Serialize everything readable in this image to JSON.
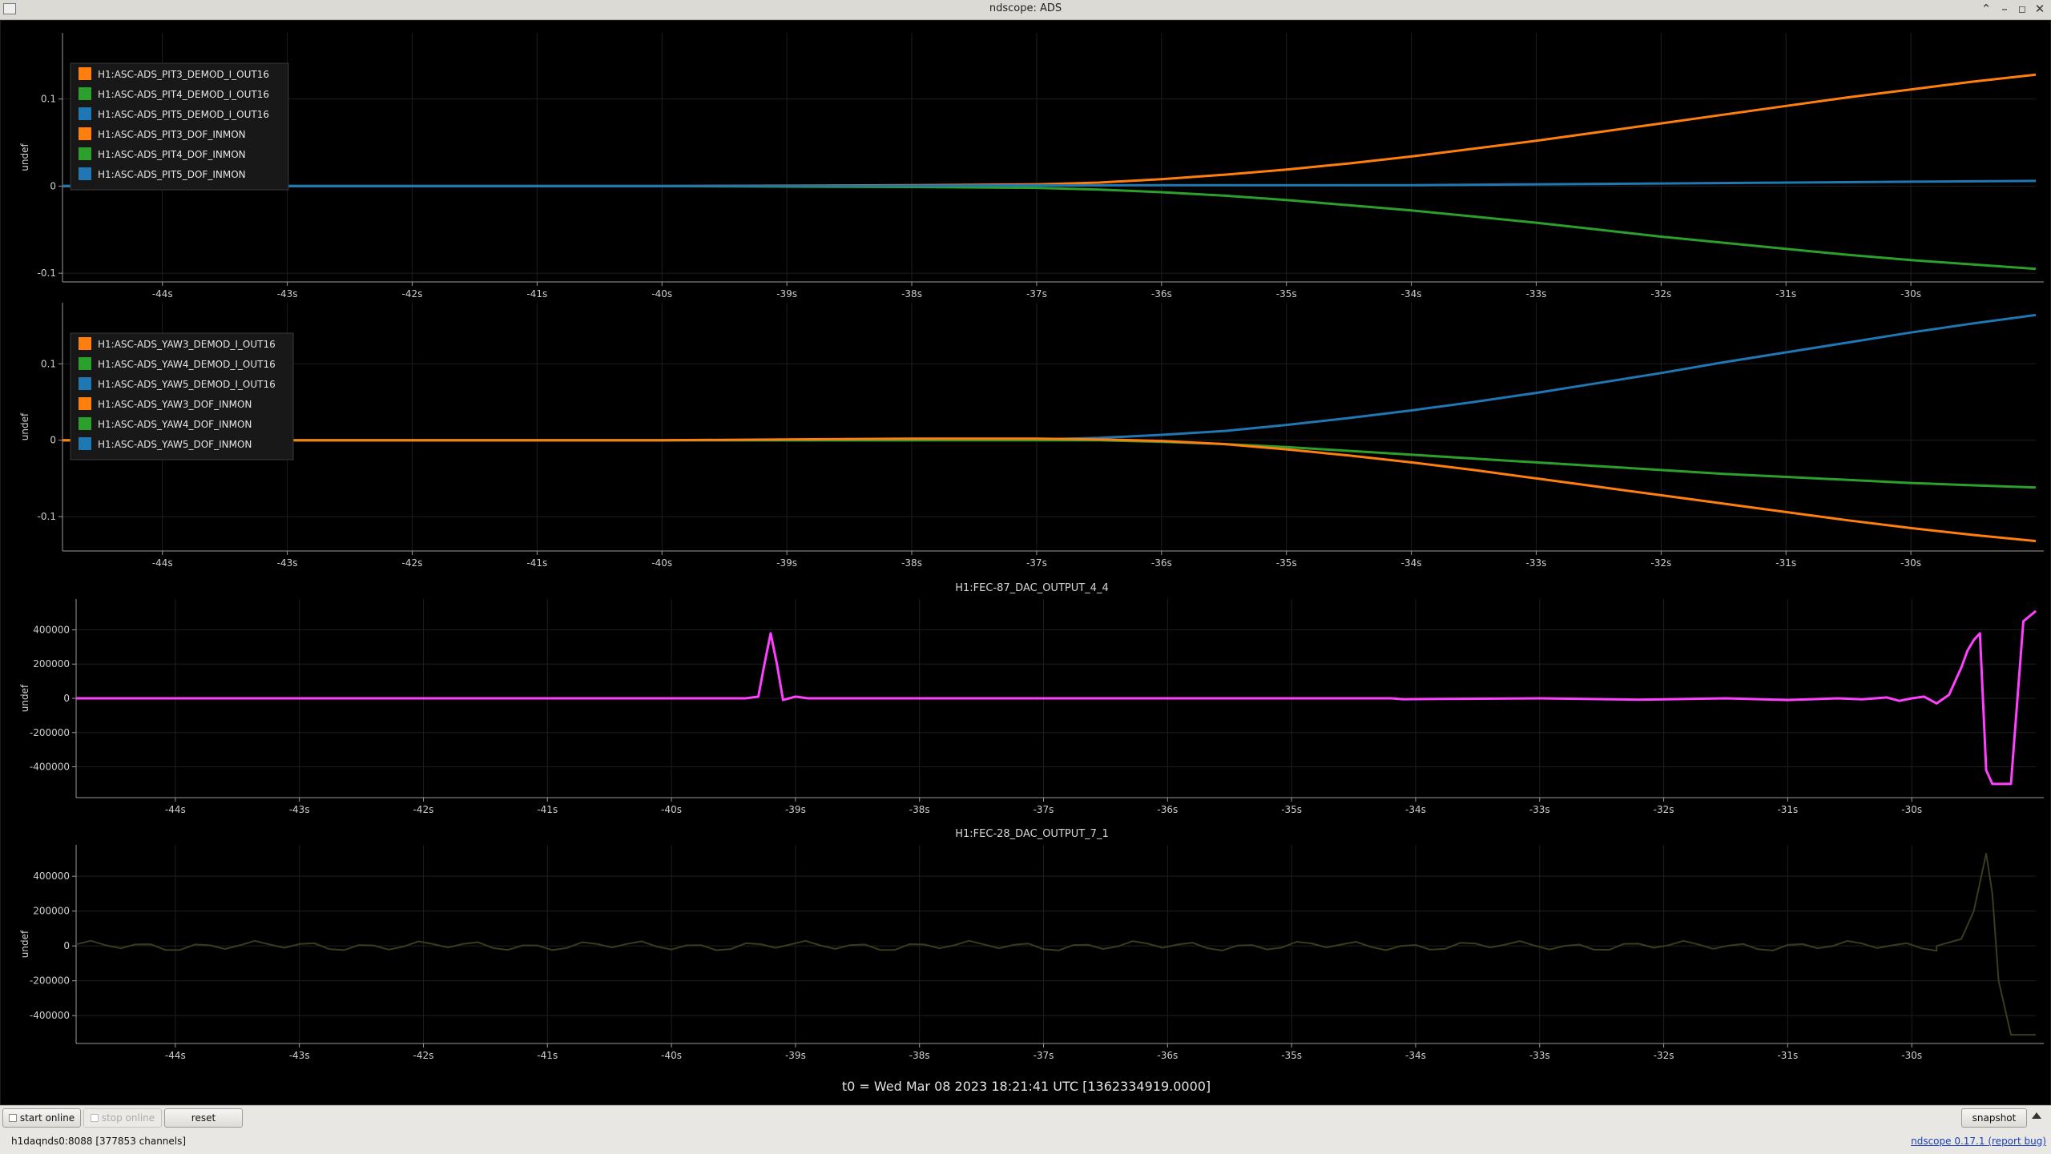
{
  "window": {
    "title": "ndscope: ADS"
  },
  "plots": [
    {
      "id": "pit",
      "title": "",
      "ylabel": "undef",
      "yticks": [
        {
          "v": 0.1,
          "label": "0.1"
        },
        {
          "v": 0,
          "label": "0"
        },
        {
          "v": -0.1,
          "label": "-0.1"
        }
      ],
      "ylim": [
        -0.11,
        0.176
      ],
      "legend": [
        {
          "name": "H1:ASC-ADS_PIT3_DEMOD_I_OUT16",
          "color": "#ff7f0e"
        },
        {
          "name": "H1:ASC-ADS_PIT4_DEMOD_I_OUT16",
          "color": "#2ca02c"
        },
        {
          "name": "H1:ASC-ADS_PIT5_DEMOD_I_OUT16",
          "color": "#1f77b4"
        },
        {
          "name": "H1:ASC-ADS_PIT3_DOF_INMON",
          "color": "#ff7f0e"
        },
        {
          "name": "H1:ASC-ADS_PIT4_DOF_INMON",
          "color": "#2ca02c"
        },
        {
          "name": "H1:ASC-ADS_PIT5_DOF_INMON",
          "color": "#1f77b4"
        }
      ],
      "series": [
        {
          "color": "#ff7f0e",
          "x": [
            -44.8,
            -40,
            -38,
            -37,
            -36.5,
            -36,
            -35.5,
            -35,
            -34.5,
            -34,
            -33.5,
            -33,
            -32.5,
            -32,
            -31.5,
            -31,
            -30.5,
            -30,
            -29.5,
            -29.0
          ],
          "y": [
            0.0,
            0.0,
            0.001,
            0.002,
            0.004,
            0.008,
            0.013,
            0.019,
            0.026,
            0.034,
            0.043,
            0.052,
            0.062,
            0.072,
            0.082,
            0.092,
            0.102,
            0.111,
            0.12,
            0.128
          ]
        },
        {
          "color": "#2ca02c",
          "x": [
            -44.8,
            -40,
            -38,
            -37,
            -36.5,
            -36,
            -35.5,
            -35,
            -34.5,
            -34,
            -33.5,
            -33,
            -32.5,
            -32,
            -31.5,
            -31,
            -30.5,
            -30,
            -29.5,
            -29.0
          ],
          "y": [
            0.0,
            0.0,
            -0.001,
            -0.002,
            -0.004,
            -0.007,
            -0.011,
            -0.016,
            -0.022,
            -0.028,
            -0.035,
            -0.042,
            -0.05,
            -0.058,
            -0.065,
            -0.072,
            -0.079,
            -0.085,
            -0.09,
            -0.095
          ]
        },
        {
          "color": "#1f77b4",
          "x": [
            -44.8,
            -40,
            -36,
            -34,
            -32,
            -30,
            -29.0
          ],
          "y": [
            0.0,
            0.0,
            0.001,
            0.001,
            0.003,
            0.005,
            0.006
          ]
        }
      ]
    },
    {
      "id": "yaw",
      "title": "",
      "ylabel": "undef",
      "yticks": [
        {
          "v": 0.1,
          "label": "0.1"
        },
        {
          "v": 0,
          "label": "0"
        },
        {
          "v": -0.1,
          "label": "-0.1"
        }
      ],
      "ylim": [
        -0.145,
        0.18
      ],
      "legend": [
        {
          "name": "H1:ASC-ADS_YAW3_DEMOD_I_OUT16",
          "color": "#ff7f0e"
        },
        {
          "name": "H1:ASC-ADS_YAW4_DEMOD_I_OUT16",
          "color": "#2ca02c"
        },
        {
          "name": "H1:ASC-ADS_YAW5_DEMOD_I_OUT16",
          "color": "#1f77b4"
        },
        {
          "name": "H1:ASC-ADS_YAW3_DOF_INMON",
          "color": "#ff7f0e"
        },
        {
          "name": "H1:ASC-ADS_YAW4_DOF_INMON",
          "color": "#2ca02c"
        },
        {
          "name": "H1:ASC-ADS_YAW5_DOF_INMON",
          "color": "#1f77b4"
        }
      ],
      "series": [
        {
          "color": "#1f77b4",
          "x": [
            -44.8,
            -40,
            -38,
            -37,
            -36.5,
            -36,
            -35.5,
            -35,
            -34.5,
            -34,
            -33.5,
            -33,
            -32.5,
            -32,
            -31.5,
            -31,
            -30.5,
            -30,
            -29.5,
            -29.0
          ],
          "y": [
            0.0,
            0.0,
            0.0,
            0.001,
            0.003,
            0.007,
            0.012,
            0.02,
            0.029,
            0.039,
            0.05,
            0.062,
            0.075,
            0.088,
            0.102,
            0.115,
            0.128,
            0.141,
            0.153,
            0.164
          ]
        },
        {
          "color": "#2ca02c",
          "x": [
            -44.8,
            -40,
            -38,
            -37,
            -36.5,
            -36,
            -35.5,
            -35,
            -34.5,
            -34,
            -33.5,
            -33,
            -32.5,
            -32,
            -31.5,
            -31,
            -30.5,
            -30,
            -29.5,
            -29.0
          ],
          "y": [
            0.0,
            0.0,
            0.0,
            0.0,
            0.0,
            -0.002,
            -0.005,
            -0.009,
            -0.014,
            -0.019,
            -0.024,
            -0.029,
            -0.034,
            -0.039,
            -0.044,
            -0.048,
            -0.052,
            -0.056,
            -0.059,
            -0.062
          ]
        },
        {
          "color": "#ff7f0e",
          "x": [
            -44.8,
            -40,
            -38,
            -37,
            -36.5,
            -36,
            -35.5,
            -35,
            -34.5,
            -34,
            -33.5,
            -33,
            -32.5,
            -32,
            -31.5,
            -31,
            -30.5,
            -30,
            -29.5,
            -29.0
          ],
          "y": [
            0.0,
            0.0,
            0.002,
            0.002,
            0.001,
            -0.001,
            -0.005,
            -0.012,
            -0.02,
            -0.029,
            -0.039,
            -0.05,
            -0.061,
            -0.072,
            -0.083,
            -0.094,
            -0.105,
            -0.115,
            -0.124,
            -0.132
          ]
        }
      ]
    },
    {
      "id": "fec87",
      "title": "H1:FEC-87_DAC_OUTPUT_4_4",
      "ylabel": "undef",
      "yticks": [
        {
          "v": 400000,
          "label": "400000"
        },
        {
          "v": 200000,
          "label": "200000"
        },
        {
          "v": 0,
          "label": "0"
        },
        {
          "v": -200000,
          "label": "-200000"
        },
        {
          "v": -400000,
          "label": "-400000"
        }
      ],
      "ylim": [
        -580000,
        580000
      ],
      "legend": [],
      "series": [
        {
          "color": "#ff40ff",
          "x": [
            -44.8,
            -39.4,
            -39.3,
            -39.25,
            -39.2,
            -39.15,
            -39.1,
            -39.0,
            -38.9,
            -35,
            -34.2,
            -34.1,
            -33,
            -32.2,
            -31.5,
            -31.0,
            -30.6,
            -30.4,
            -30.2,
            -30.1,
            -30.0,
            -29.9,
            -29.8,
            -29.7,
            -29.6,
            -29.55,
            -29.5,
            -29.45,
            -29.4,
            -29.35,
            -29.3,
            -29.25,
            -29.2,
            -29.1,
            -29.05,
            -29.0
          ],
          "y": [
            0,
            0,
            10000,
            200000,
            380000,
            200000,
            -10000,
            10000,
            0,
            0,
            0,
            -5000,
            0,
            -8000,
            0,
            -10000,
            0,
            -6000,
            5000,
            -15000,
            0,
            10000,
            -30000,
            20000,
            180000,
            280000,
            340000,
            380000,
            -420000,
            -500000,
            -500000,
            -500000,
            -500000,
            450000,
            480000,
            510000
          ]
        }
      ]
    },
    {
      "id": "fec28",
      "title": "H1:FEC-28_DAC_OUTPUT_7_1",
      "ylabel": "undef",
      "yticks": [
        {
          "v": 400000,
          "label": "400000"
        },
        {
          "v": 200000,
          "label": "200000"
        },
        {
          "v": 0,
          "label": "0"
        },
        {
          "v": -200000,
          "label": "-200000"
        },
        {
          "v": -400000,
          "label": "-400000"
        }
      ],
      "ylim": [
        -560000,
        580000
      ],
      "legend": [],
      "series": [
        {
          "color": "#3b3b1e",
          "noise": {
            "from": -44.8,
            "to": -29.8,
            "step": 0.12,
            "amp": 30000
          },
          "x": [
            -29.8,
            -29.6,
            -29.5,
            -29.4,
            -29.35,
            -29.3,
            -29.2,
            -29.0
          ],
          "y": [
            0,
            40000,
            200000,
            530000,
            300000,
            -200000,
            -510000,
            -510000
          ]
        }
      ]
    }
  ],
  "x_axis": {
    "xlim": [
      -44.8,
      -29.0
    ],
    "ticks": [
      {
        "v": -44,
        "label": "-44s"
      },
      {
        "v": -43,
        "label": "-43s"
      },
      {
        "v": -42,
        "label": "-42s"
      },
      {
        "v": -41,
        "label": "-41s"
      },
      {
        "v": -40,
        "label": "-40s"
      },
      {
        "v": -39,
        "label": "-39s"
      },
      {
        "v": -38,
        "label": "-38s"
      },
      {
        "v": -37,
        "label": "-37s"
      },
      {
        "v": -36,
        "label": "-36s"
      },
      {
        "v": -35,
        "label": "-35s"
      },
      {
        "v": -34,
        "label": "-34s"
      },
      {
        "v": -33,
        "label": "-33s"
      },
      {
        "v": -32,
        "label": "-32s"
      },
      {
        "v": -31,
        "label": "-31s"
      },
      {
        "v": -30,
        "label": "-30s"
      }
    ]
  },
  "t0_label": "t0 = Wed Mar 08 2023 18:21:41 UTC [1362334919.0000]",
  "toolbar": {
    "start_online": "start online",
    "stop_online": "stop online",
    "reset": "reset",
    "snapshot": "snapshot"
  },
  "status": {
    "server": "h1daqnds0:8088  [377853 channels]",
    "version": "ndscope 0.17.1",
    "report_bug": "(report bug)"
  },
  "chart_data": [
    {
      "type": "line",
      "title": "",
      "ylabel": "undef",
      "xlim": [
        -44.8,
        -29.0
      ],
      "ylim": [
        -0.11,
        0.176
      ],
      "grid": true,
      "legend": "top-left",
      "series": [
        {
          "name": "H1:ASC-ADS_PIT3_DEMOD_I_OUT16"
        },
        {
          "name": "H1:ASC-ADS_PIT4_DEMOD_I_OUT16"
        },
        {
          "name": "H1:ASC-ADS_PIT5_DEMOD_I_OUT16"
        },
        {
          "name": "H1:ASC-ADS_PIT3_DOF_INMON"
        },
        {
          "name": "H1:ASC-ADS_PIT4_DOF_INMON"
        },
        {
          "name": "H1:ASC-ADS_PIT5_DOF_INMON"
        }
      ]
    },
    {
      "type": "line",
      "title": "",
      "ylabel": "undef",
      "xlim": [
        -44.8,
        -29.0
      ],
      "ylim": [
        -0.145,
        0.18
      ],
      "grid": true,
      "legend": "top-left",
      "series": [
        {
          "name": "H1:ASC-ADS_YAW3_DEMOD_I_OUT16"
        },
        {
          "name": "H1:ASC-ADS_YAW4_DEMOD_I_OUT16"
        },
        {
          "name": "H1:ASC-ADS_YAW5_DEMOD_I_OUT16"
        },
        {
          "name": "H1:ASC-ADS_YAW3_DOF_INMON"
        },
        {
          "name": "H1:ASC-ADS_YAW4_DOF_INMON"
        },
        {
          "name": "H1:ASC-ADS_YAW5_DOF_INMON"
        }
      ]
    },
    {
      "type": "line",
      "title": "H1:FEC-87_DAC_OUTPUT_4_4",
      "ylabel": "undef",
      "xlim": [
        -44.8,
        -29.0
      ],
      "ylim": [
        -580000,
        580000
      ],
      "grid": true
    },
    {
      "type": "line",
      "title": "H1:FEC-28_DAC_OUTPUT_7_1",
      "ylabel": "undef",
      "xlim": [
        -44.8,
        -29.0
      ],
      "ylim": [
        -560000,
        580000
      ],
      "grid": true
    }
  ]
}
